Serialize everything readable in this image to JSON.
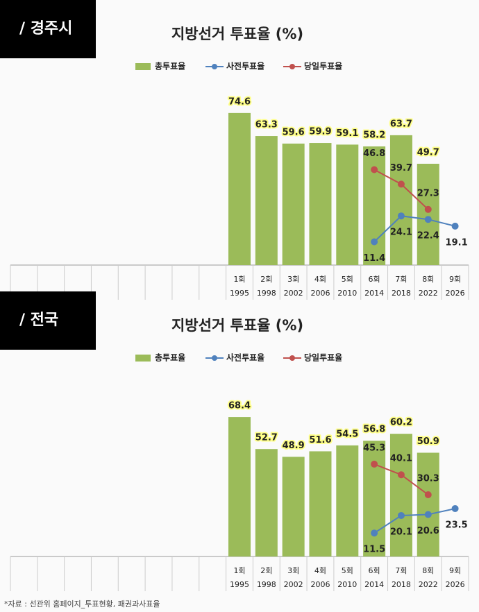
{
  "chart_data": [
    {
      "type": "bar",
      "region_label": "/ 경주시",
      "title": "지방선거 투표율 (%)",
      "categories": [
        null,
        null,
        null,
        null,
        null,
        null,
        null,
        null,
        "1회",
        "2회",
        "3회",
        "4회",
        "5회",
        "6회",
        "7회",
        "8회",
        "9회"
      ],
      "category_years": [
        null,
        null,
        null,
        null,
        null,
        null,
        null,
        null,
        "1995",
        "1998",
        "2002",
        "2006",
        "2010",
        "2014",
        "2018",
        "2022",
        "2026"
      ],
      "ylim": [
        0,
        80
      ],
      "series": [
        {
          "name": "총투표율",
          "type": "bar",
          "color": "#9bbb59",
          "values": [
            null,
            null,
            null,
            null,
            null,
            null,
            null,
            null,
            74.6,
            63.3,
            59.6,
            59.9,
            59.1,
            58.2,
            63.7,
            49.7,
            null
          ]
        },
        {
          "name": "사전투표율",
          "type": "line",
          "color": "#4f81bd",
          "values": [
            null,
            null,
            null,
            null,
            null,
            null,
            null,
            null,
            null,
            null,
            null,
            null,
            null,
            11.4,
            24.1,
            22.4,
            19.1
          ]
        },
        {
          "name": "당일투표율",
          "type": "line",
          "color": "#c0504d",
          "values": [
            null,
            null,
            null,
            null,
            null,
            null,
            null,
            null,
            null,
            null,
            null,
            null,
            null,
            46.8,
            39.7,
            27.3,
            null
          ]
        }
      ]
    },
    {
      "type": "bar",
      "region_label": "/ 전국",
      "title": "지방선거 투표율 (%)",
      "categories": [
        null,
        null,
        null,
        null,
        null,
        null,
        null,
        null,
        "1회",
        "2회",
        "3회",
        "4회",
        "5회",
        "6회",
        "7회",
        "8회",
        "9회"
      ],
      "category_years": [
        null,
        null,
        null,
        null,
        null,
        null,
        null,
        null,
        "1995",
        "1998",
        "2002",
        "2006",
        "2010",
        "2014",
        "2018",
        "2022",
        "2026"
      ],
      "ylim": [
        0,
        80
      ],
      "series": [
        {
          "name": "총투표율",
          "type": "bar",
          "color": "#9bbb59",
          "values": [
            null,
            null,
            null,
            null,
            null,
            null,
            null,
            null,
            68.4,
            52.7,
            48.9,
            51.6,
            54.5,
            56.8,
            60.2,
            50.9,
            null
          ]
        },
        {
          "name": "사전투표율",
          "type": "line",
          "color": "#4f81bd",
          "values": [
            null,
            null,
            null,
            null,
            null,
            null,
            null,
            null,
            null,
            null,
            null,
            null,
            null,
            11.5,
            20.1,
            20.6,
            23.5
          ]
        },
        {
          "name": "당일투표율",
          "type": "line",
          "color": "#c0504d",
          "values": [
            null,
            null,
            null,
            null,
            null,
            null,
            null,
            null,
            null,
            null,
            null,
            null,
            null,
            45.3,
            40.1,
            30.3,
            null
          ]
        }
      ]
    }
  ],
  "source": "*자료 : 선관위 홈페이지_투표현황, 패권과사표율"
}
